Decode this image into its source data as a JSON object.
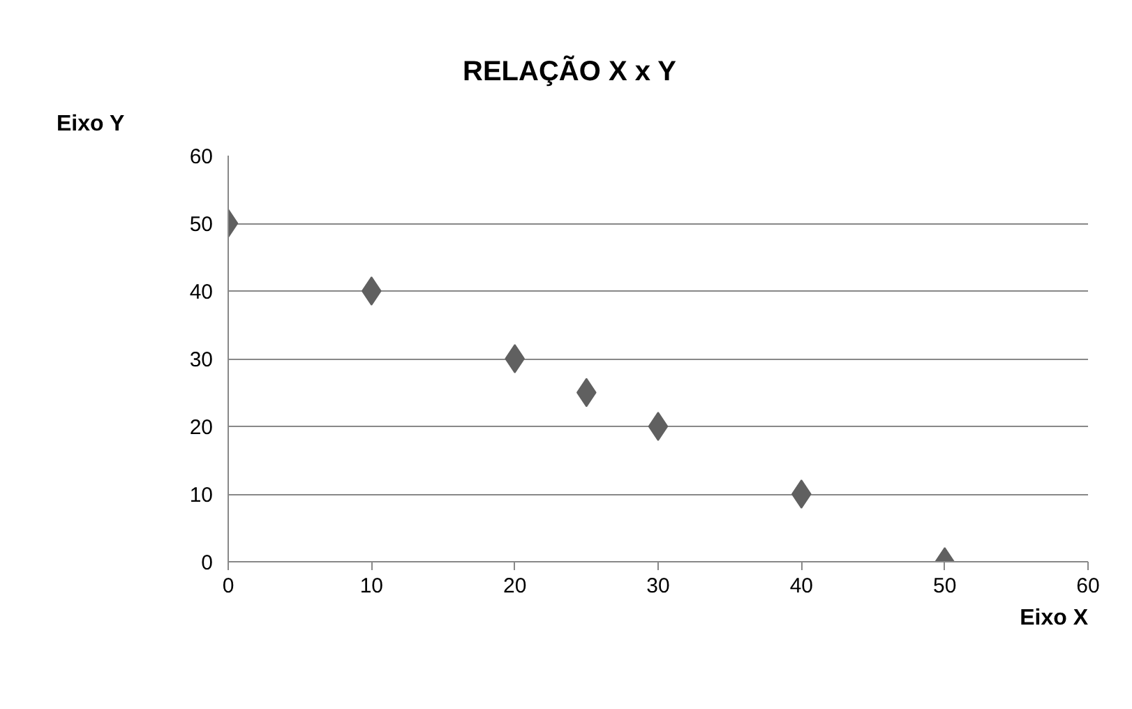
{
  "chart_data": {
    "type": "scatter",
    "title": "RELAÇÃO X x Y",
    "xlabel": "Eixo X",
    "ylabel": "Eixo Y",
    "x": [
      0,
      10,
      20,
      25,
      30,
      40,
      50
    ],
    "series": [
      {
        "color": "#606060",
        "values": [
          50,
          40,
          30,
          25,
          20,
          10,
          0
        ]
      }
    ],
    "xlim": [
      0,
      60
    ],
    "ylim": [
      0,
      60
    ],
    "xticks": [
      0,
      10,
      20,
      30,
      40,
      50,
      60
    ],
    "yticks": [
      0,
      10,
      20,
      30,
      40,
      50,
      60
    ],
    "grid": "y",
    "marker": "diamond"
  }
}
